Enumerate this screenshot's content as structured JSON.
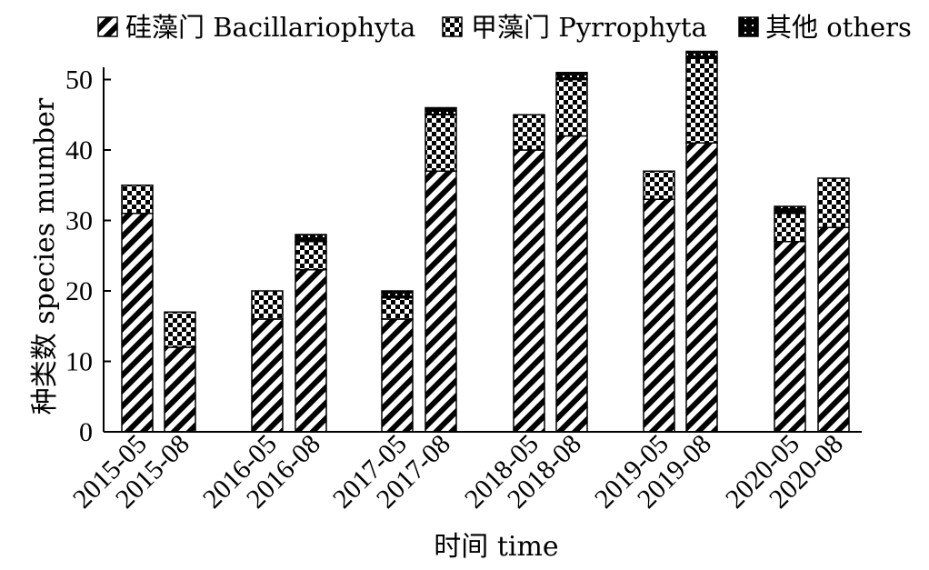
{
  "chart_data": {
    "type": "bar",
    "stacked": true,
    "xlabel": "时间 time",
    "ylabel": "种类数 species mumber",
    "ylim": [
      0,
      53
    ],
    "yticks": [
      0,
      10,
      20,
      30,
      40,
      50
    ],
    "grid": false,
    "legend_position": "top",
    "categories": [
      "2015-05",
      "2015-08",
      "2016-05",
      "2016-08",
      "2017-05",
      "2017-08",
      "2018-05",
      "2018-08",
      "2019-05",
      "2019-08",
      "2020-05",
      "2020-08"
    ],
    "series": [
      {
        "name": "硅藻门 Bacillariophyta",
        "pattern": "diagonal-stripes",
        "values": [
          31,
          12,
          16,
          23,
          16,
          37,
          40,
          42,
          33,
          41,
          27,
          29
        ]
      },
      {
        "name": "甲藻门 Pyrrophyta",
        "pattern": "checkerboard",
        "values": [
          4,
          5,
          4,
          4,
          3,
          8,
          5,
          8,
          4,
          12,
          4,
          7
        ]
      },
      {
        "name": "其他 others",
        "pattern": "dark-dot",
        "values": [
          0,
          0,
          0,
          1,
          1,
          1,
          0,
          1,
          0,
          1,
          1,
          0
        ]
      }
    ]
  }
}
